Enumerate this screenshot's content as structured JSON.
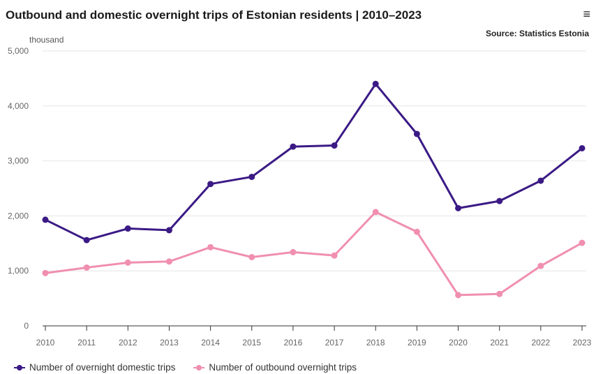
{
  "header": {
    "title": "Outbound and domestic overnight trips of Estonian residents | 2010–2023",
    "source": "Source: Statistics Estonia",
    "menu_icon": "hamburger-menu-icon"
  },
  "chart_data": {
    "type": "line",
    "title": "Outbound and domestic overnight trips of Estonian residents | 2010–2023",
    "ylabel": "thousand",
    "xlabel": "",
    "x": [
      "2010",
      "2011",
      "2012",
      "2013",
      "2014",
      "2015",
      "2016",
      "2017",
      "2018",
      "2019",
      "2020",
      "2021",
      "2022",
      "2023"
    ],
    "ylim": [
      0,
      5000
    ],
    "yticks": [
      "0",
      "1,000",
      "2,000",
      "3,000",
      "4,000",
      "5,000"
    ],
    "ytick_values": [
      0,
      1000,
      2000,
      3000,
      4000,
      5000
    ],
    "grid": true,
    "legend_position": "bottom-left",
    "series": [
      {
        "name": "Number of overnight domestic trips",
        "color": "#3b1a85",
        "values": [
          1930,
          1560,
          1770,
          1740,
          2580,
          2710,
          3260,
          3280,
          4400,
          3490,
          2140,
          2270,
          2640,
          3230
        ]
      },
      {
        "name": "Number of outbound overnight trips",
        "color": "#f08fb0",
        "values": [
          960,
          1060,
          1150,
          1170,
          1430,
          1250,
          1340,
          1280,
          2070,
          1710,
          560,
          580,
          1090,
          1510
        ]
      }
    ]
  }
}
